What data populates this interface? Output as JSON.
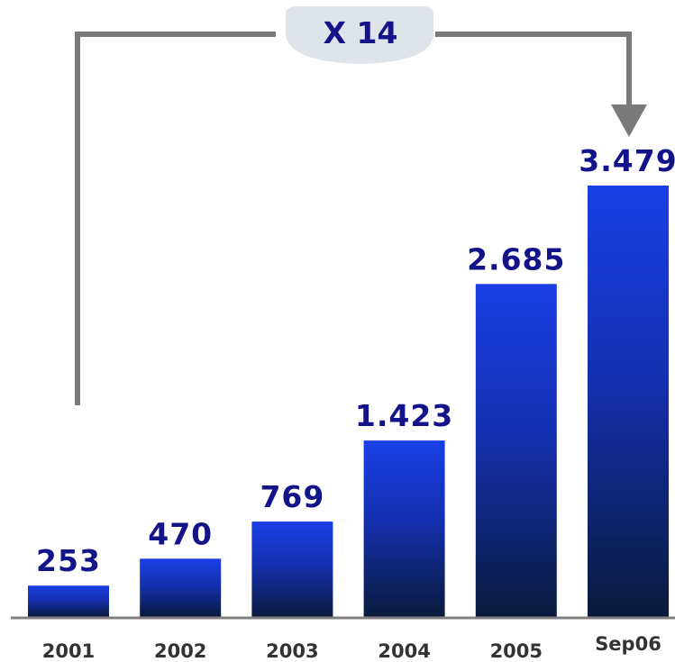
{
  "chart_data": {
    "type": "bar",
    "title": "",
    "xlabel": "",
    "ylabel": "",
    "categories": [
      "2001",
      "2002",
      "2003",
      "2004",
      "2005",
      "Sep06"
    ],
    "values": [
      253,
      470,
      769,
      1423,
      2685,
      3479
    ],
    "value_labels": [
      "253",
      "470",
      "769",
      "1.423",
      "2.685",
      "3.479"
    ],
    "ylim": [
      0,
      3479
    ],
    "grid": false,
    "legend": "none",
    "annotation": {
      "text": "X 14",
      "from_category": "2001",
      "to_category": "Sep06"
    },
    "colors": {
      "bar_top": "#1a3fe6",
      "bar_bottom": "#0a1a3c",
      "label_text": "#14148a",
      "tick_text": "#333333",
      "axis_line": "#808080",
      "bracket_line": "#7a7a7a"
    }
  }
}
